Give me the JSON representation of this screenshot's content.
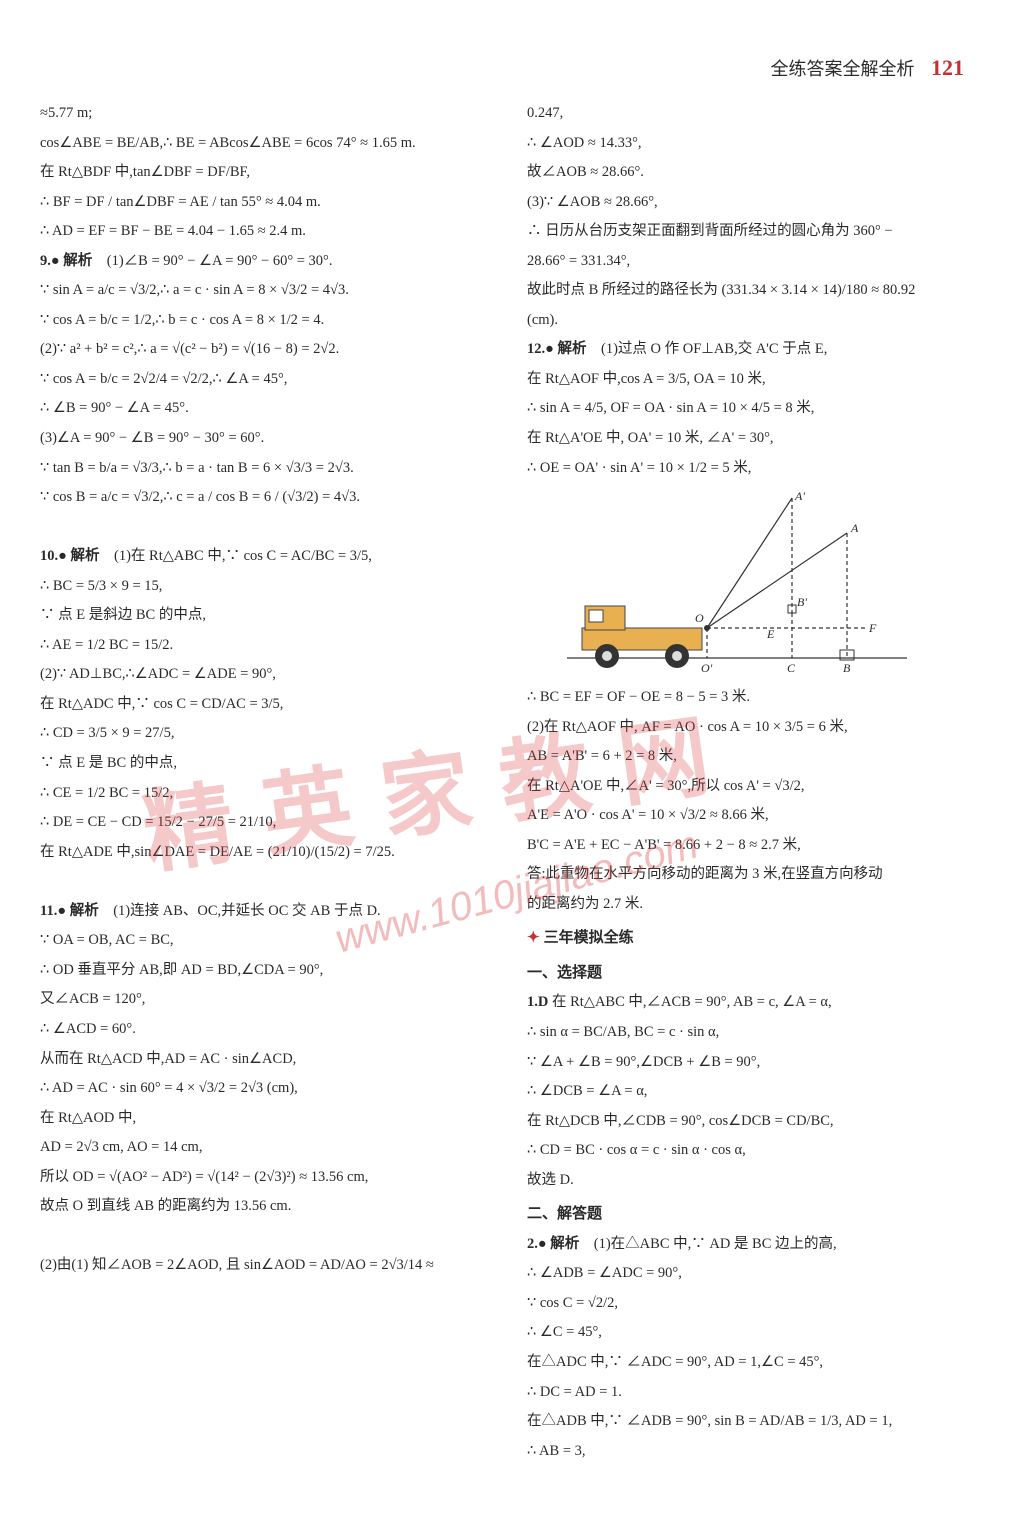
{
  "header": {
    "title": "全练答案全解全析",
    "page": "121"
  },
  "watermark": {
    "text_cn": "精英家教网",
    "url": "www.1010jiajiao.com"
  },
  "diagram": {
    "labels": {
      "A": "A",
      "Aprime": "A'",
      "B": "B",
      "Bprime": "B'",
      "C": "C",
      "E": "E",
      "F": "F",
      "O": "O",
      "Oprime": "O'"
    },
    "colors": {
      "truck": "#e8b050",
      "stroke": "#333333"
    }
  },
  "left": [
    "≈5.77 m;",
    "cos∠ABE = BE/AB,∴ BE = ABcos∠ABE = 6cos 74° ≈ 1.65 m.",
    "在 Rt△BDF 中,tan∠DBF = DF/BF,",
    "∴ BF = DF / tan∠DBF = AE / tan 55° ≈ 4.04 m.",
    "∴ AD = EF = BF − BE = 4.04 − 1.65 ≈ 2.4 m.",
    "9.● 解析　(1)∠B = 90° − ∠A = 90° − 60° = 30°.",
    "∵ sin A = a/c = √3/2,∴ a = c · sin A = 8 × √3/2 = 4√3.",
    "∵ cos A = b/c = 1/2,∴ b = c · cos A = 8 × 1/2 = 4.",
    "(2)∵ a² + b² = c²,∴ a = √(c² − b²) = √(16 − 8) = 2√2.",
    "∵ cos A = b/c = 2√2/4 = √2/2,∴ ∠A = 45°,",
    "∴ ∠B = 90° − ∠A = 45°.",
    "(3)∠A = 90° − ∠B = 90° − 30° = 60°.",
    "∵ tan B = b/a = √3/3,∴ b = a · tan B = 6 × √3/3 = 2√3.",
    "∵ cos B = a/c = √3/2,∴ c = a / cos B = 6 / (√3/2) = 4√3.",
    "",
    "10.● 解析　(1)在 Rt△ABC 中,∵ cos C = AC/BC = 3/5,",
    "∴ BC = 5/3 × 9 = 15,",
    "∵ 点 E 是斜边 BC 的中点,",
    "∴ AE = 1/2 BC = 15/2.",
    "(2)∵ AD⊥BC,∴∠ADC = ∠ADE = 90°,",
    "在 Rt△ADC 中,∵ cos C = CD/AC = 3/5,",
    "∴ CD = 3/5 × 9 = 27/5,",
    "∵ 点 E 是 BC 的中点,",
    "∴ CE = 1/2 BC = 15/2,",
    "∴ DE = CE − CD = 15/2 − 27/5 = 21/10,",
    "在 Rt△ADE 中,sin∠DAE = DE/AE = (21/10)/(15/2) = 7/25.",
    "",
    "11.● 解析　(1)连接 AB、OC,并延长 OC 交 AB 于点 D.",
    "∵ OA = OB, AC = BC,",
    "∴ OD 垂直平分 AB,即 AD = BD,∠CDA = 90°,",
    "又∠ACB = 120°,",
    "∴ ∠ACD = 60°.",
    "从而在 Rt△ACD 中,AD = AC · sin∠ACD,",
    "∴ AD = AC · sin 60° = 4 × √3/2 = 2√3 (cm),",
    "在 Rt△AOD 中,",
    "AD = 2√3 cm, AO = 14 cm,",
    "所以 OD = √(AO² − AD²) = √(14² − (2√3)²) ≈ 13.56 cm,",
    "故点 O 到直线 AB 的距离约为 13.56 cm.",
    "",
    "(2)由(1) 知∠AOB = 2∠AOD, 且 sin∠AOD = AD/AO = 2√3/14 ≈"
  ],
  "right_top": [
    "0.247,",
    "∴ ∠AOD ≈ 14.33°,",
    "故∠AOB ≈ 28.66°.",
    "(3)∵ ∠AOB ≈ 28.66°,",
    "∴ 日历从台历支架正面翻到背面所经过的圆心角为 360° −",
    "28.66° = 331.34°,",
    "故此时点 B 所经过的路径长为 (331.34 × 3.14 × 14)/180 ≈ 80.92",
    "(cm).",
    "12.● 解析　(1)过点 O 作 OF⊥AB,交 A'C 于点 E,",
    "在 Rt△AOF 中,cos A = 3/5, OA = 10 米,",
    "∴ sin A = 4/5, OF = OA · sin A = 10 × 4/5 = 8 米,",
    "在 Rt△A'OE 中, OA' = 10 米, ∠A' = 30°,",
    "∴ OE = OA' · sin A' = 10 × 1/2 = 5 米,"
  ],
  "right_mid": [
    "∴ BC = EF = OF − OE = 8 − 5 = 3 米.",
    "(2)在 Rt△AOF 中, AF = AO · cos A = 10 × 3/5 = 6 米,",
    "AB = A'B' = 6 + 2 = 8 米,",
    "在 Rt△A'OE 中,∠A' = 30°,所以 cos A' = √3/2,",
    "A'E = A'O · cos A' = 10 × √3/2 ≈ 8.66 米,",
    "B'C = A'E + EC − A'B' = 8.66 + 2 − 8 ≈ 2.7 米,",
    "答:此重物在水平方向移动的距离为 3 米,在竖直方向移动",
    "的距离约为 2.7 米."
  ],
  "right_section_header": "三年模拟全练",
  "right_sub1": "一、选择题",
  "right_bottom1": [
    "1.D  在 Rt△ABC 中,∠ACB = 90°, AB = c, ∠A = α,",
    "∴ sin α = BC/AB, BC = c · sin α,",
    "∵ ∠A + ∠B = 90°,∠DCB + ∠B = 90°,",
    "∴ ∠DCB = ∠A = α,",
    "在 Rt△DCB 中,∠CDB = 90°, cos∠DCB = CD/BC,",
    "∴ CD = BC · cos α = c · sin α · cos α,",
    "故选 D."
  ],
  "right_sub2": "二、解答题",
  "right_bottom2": [
    "2.● 解析　(1)在△ABC 中,∵ AD 是 BC 边上的高,",
    "∴ ∠ADB = ∠ADC = 90°,",
    "∵ cos C = √2/2,",
    "∴ ∠C = 45°,",
    "在△ADC 中,∵ ∠ADC = 90°, AD = 1,∠C = 45°,",
    "∴ DC = AD = 1.",
    "在△ADB 中,∵ ∠ADB = 90°, sin B = AD/AB = 1/3, AD = 1,",
    "∴ AB = 3,"
  ]
}
